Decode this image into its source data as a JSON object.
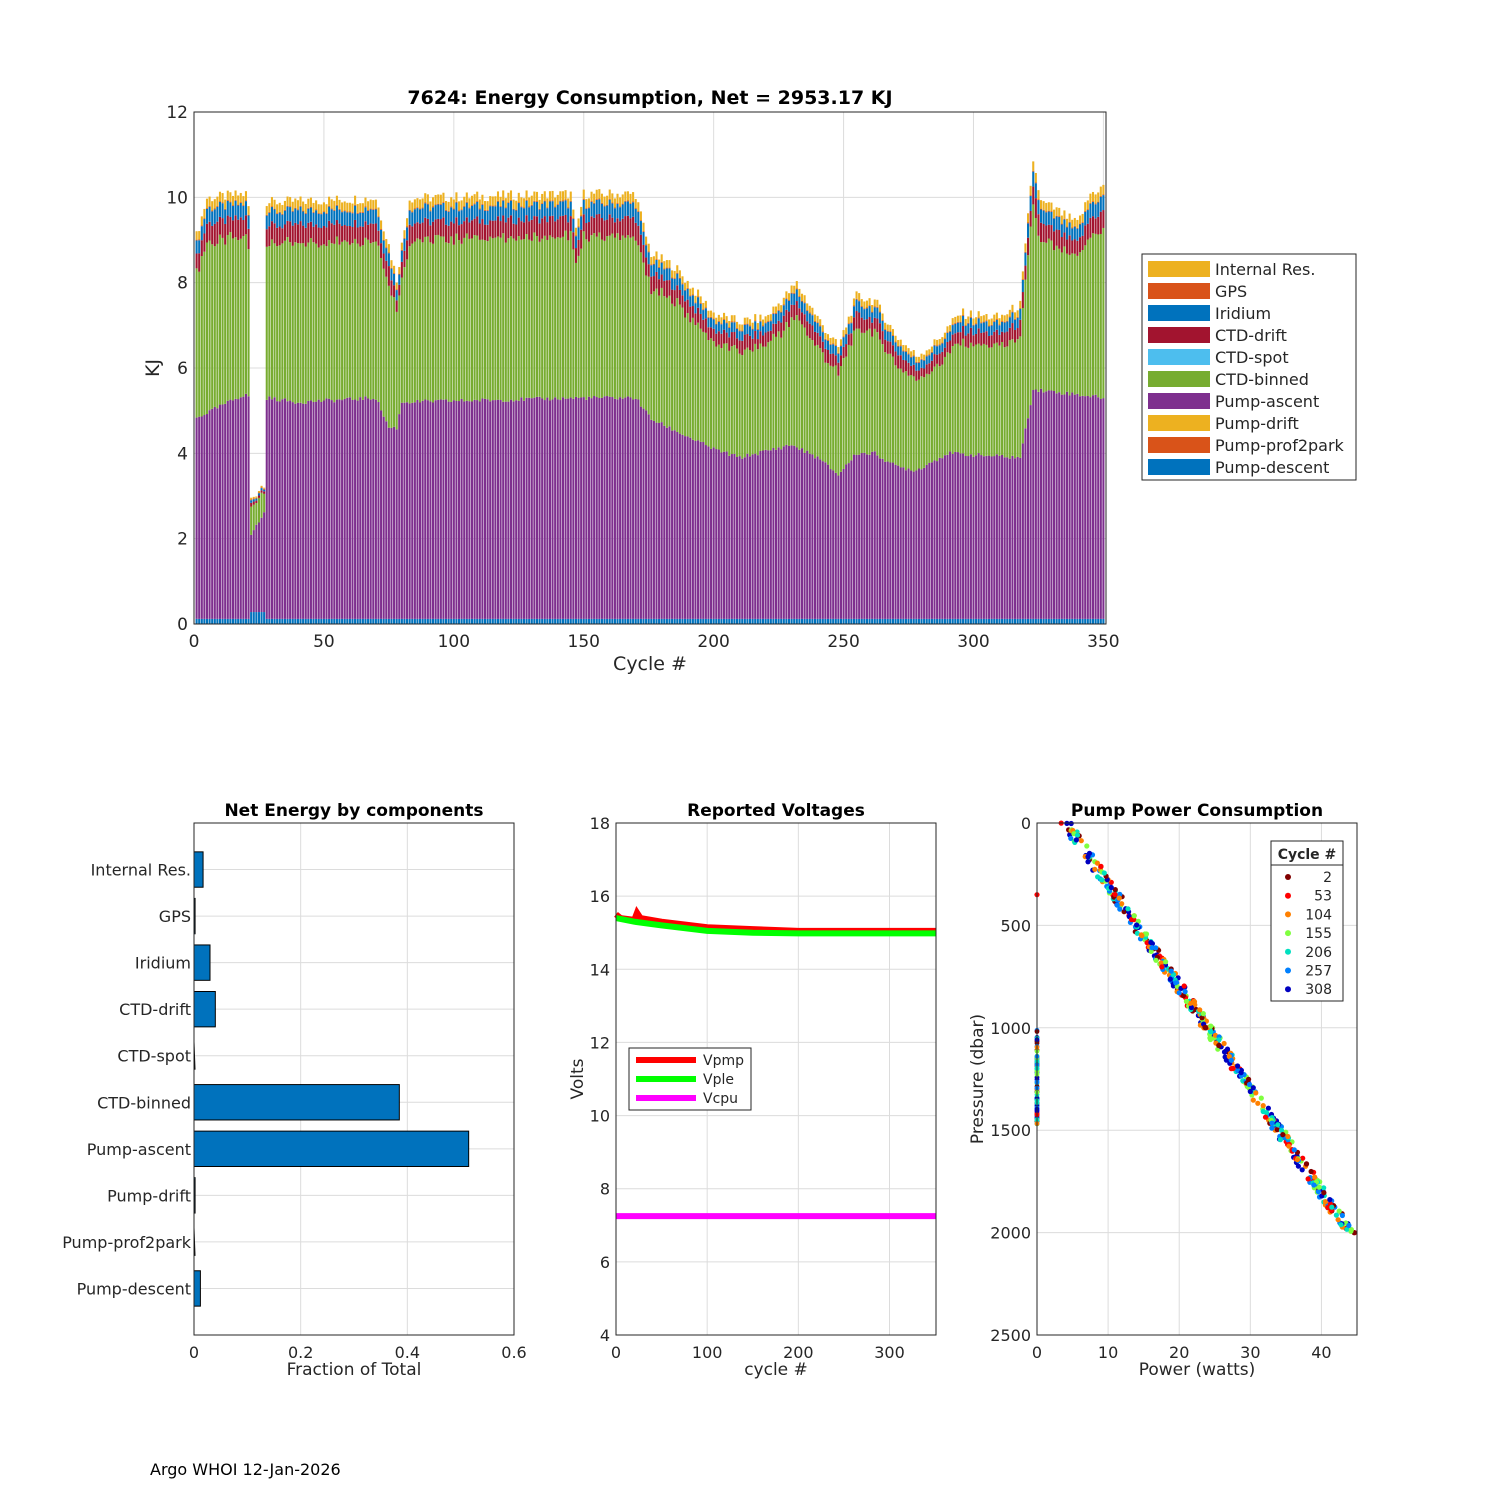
{
  "footer": "Argo WHOI 12-Jan-2026",
  "colors": {
    "Pump-descent": "#0072bd",
    "Pump-prof2park": "#d95319",
    "Pump-drift": "#edb120",
    "Pump-ascent": "#7e2f8e",
    "CTD-binned": "#77ac30",
    "CTD-spot": "#4dbeee",
    "CTD-drift": "#a2142f",
    "Iridium": "#0072bd",
    "GPS": "#d95319",
    "Internal Res.": "#edb120"
  },
  "chart_data": [
    {
      "type": "bar",
      "stacked": true,
      "title": "7624: Energy Consumption,  Net = 2953.17 KJ",
      "xlabel": "Cycle #",
      "ylabel": "KJ",
      "xlim": [
        0,
        351
      ],
      "ylim": [
        0,
        12
      ],
      "xticks": [
        0,
        50,
        100,
        150,
        200,
        250,
        300,
        350
      ],
      "yticks": [
        0,
        2,
        4,
        6,
        8,
        10,
        12
      ],
      "legend": [
        "Internal Res.",
        "GPS",
        "Iridium",
        "CTD-drift",
        "CTD-spot",
        "CTD-binned",
        "Pump-ascent",
        "Pump-drift",
        "Pump-prof2park",
        "Pump-descent"
      ],
      "stack_order": [
        "Pump-descent",
        "Pump-prof2park",
        "Pump-drift",
        "Pump-ascent",
        "CTD-binned",
        "CTD-spot",
        "CTD-drift",
        "Iridium",
        "GPS",
        "Internal Res."
      ],
      "total_profile": [
        [
          0,
          9.0
        ],
        [
          5,
          10.1
        ],
        [
          20,
          10.2
        ],
        [
          21,
          9.9
        ],
        [
          22,
          3.2
        ],
        [
          27,
          3.6
        ],
        [
          28,
          10.0
        ],
        [
          70,
          10.1
        ],
        [
          75,
          9.0
        ],
        [
          78,
          8.2
        ],
        [
          80,
          9.0
        ],
        [
          83,
          10.1
        ],
        [
          145,
          10.2
        ],
        [
          147,
          9.3
        ],
        [
          150,
          10.2
        ],
        [
          170,
          10.2
        ],
        [
          174,
          9.2
        ],
        [
          176,
          8.8
        ],
        [
          185,
          8.5
        ],
        [
          200,
          7.4
        ],
        [
          210,
          7.2
        ],
        [
          220,
          7.3
        ],
        [
          232,
          8.1
        ],
        [
          240,
          7.3
        ],
        [
          248,
          6.6
        ],
        [
          255,
          7.8
        ],
        [
          262,
          7.7
        ],
        [
          270,
          6.9
        ],
        [
          278,
          6.4
        ],
        [
          285,
          6.7
        ],
        [
          295,
          7.4
        ],
        [
          310,
          7.3
        ],
        [
          318,
          7.6
        ],
        [
          323,
          11.0
        ],
        [
          326,
          10.0
        ],
        [
          330,
          9.9
        ],
        [
          340,
          9.5
        ],
        [
          345,
          10.2
        ],
        [
          351,
          10.4
        ]
      ],
      "ascent_profile": [
        [
          0,
          4.8
        ],
        [
          20,
          5.4
        ],
        [
          21,
          5.3
        ],
        [
          22,
          2.1
        ],
        [
          27,
          2.6
        ],
        [
          28,
          5.3
        ],
        [
          40,
          5.2
        ],
        [
          70,
          5.3
        ],
        [
          75,
          4.6
        ],
        [
          78,
          4.6
        ],
        [
          80,
          5.2
        ],
        [
          150,
          5.3
        ],
        [
          170,
          5.3
        ],
        [
          176,
          4.8
        ],
        [
          200,
          4.1
        ],
        [
          210,
          3.9
        ],
        [
          230,
          4.2
        ],
        [
          240,
          3.9
        ],
        [
          248,
          3.5
        ],
        [
          255,
          4.0
        ],
        [
          262,
          4.0
        ],
        [
          270,
          3.7
        ],
        [
          278,
          3.6
        ],
        [
          290,
          4.0
        ],
        [
          318,
          3.9
        ],
        [
          323,
          5.5
        ],
        [
          351,
          5.3
        ]
      ]
    },
    {
      "type": "barh",
      "title": "Net Energy by components",
      "xlabel": "Fraction of Total",
      "xlim": [
        0,
        0.6
      ],
      "xticks": [
        0,
        0.2,
        0.4,
        0.6
      ],
      "categories": [
        "Internal Res.",
        "GPS",
        "Iridium",
        "CTD-drift",
        "CTD-spot",
        "CTD-binned",
        "Pump-ascent",
        "Pump-drift",
        "Pump-prof2park",
        "Pump-descent"
      ],
      "values": [
        0.017,
        0.002,
        0.03,
        0.04,
        0.0,
        0.385,
        0.515,
        0.002,
        0.0,
        0.012
      ]
    },
    {
      "type": "line",
      "title": "Reported Voltages",
      "xlabel": "cycle #",
      "ylabel": "Volts",
      "xlim": [
        0,
        351
      ],
      "ylim": [
        4,
        18
      ],
      "xticks": [
        0,
        100,
        200,
        300
      ],
      "yticks": [
        4,
        6,
        8,
        10,
        12,
        14,
        16,
        18
      ],
      "series": [
        {
          "name": "Vpmp",
          "color": "#ff0000",
          "points": [
            [
              0,
              15.5
            ],
            [
              5,
              15.4
            ],
            [
              20,
              15.35
            ],
            [
              23,
              15.55
            ],
            [
              27,
              15.4
            ],
            [
              50,
              15.3
            ],
            [
              100,
              15.15
            ],
            [
              150,
              15.1
            ],
            [
              200,
              15.05
            ],
            [
              250,
              15.05
            ],
            [
              300,
              15.05
            ],
            [
              351,
              15.05
            ]
          ]
        },
        {
          "name": "Vple",
          "color": "#00ff00",
          "points": [
            [
              0,
              15.4
            ],
            [
              20,
              15.3
            ],
            [
              50,
              15.2
            ],
            [
              100,
              15.05
            ],
            [
              150,
              15.0
            ],
            [
              200,
              14.98
            ],
            [
              250,
              14.98
            ],
            [
              300,
              14.98
            ],
            [
              351,
              14.98
            ]
          ]
        },
        {
          "name": "Vcpu",
          "color": "#ff00ff",
          "points": [
            [
              0,
              7.25
            ],
            [
              351,
              7.25
            ]
          ]
        }
      ]
    },
    {
      "type": "scatter",
      "title": "Pump Power Consumption",
      "xlabel": "Power (watts)",
      "ylabel": "Pressure (dbar)",
      "xlim": [
        0,
        45
      ],
      "ylim": [
        0,
        2500
      ],
      "y_reversed": true,
      "xticks": [
        0,
        10,
        20,
        30,
        40
      ],
      "yticks": [
        0,
        500,
        1000,
        1500,
        2000,
        2500
      ],
      "legend_title": "Cycle #",
      "legend": [
        {
          "label": "2",
          "color": "#800000"
        },
        {
          "label": "53",
          "color": "#ff0000"
        },
        {
          "label": "104",
          "color": "#ff8000"
        },
        {
          "label": "155",
          "color": "#80ff40"
        },
        {
          "label": "206",
          "color": "#00e0c0"
        },
        {
          "label": "257",
          "color": "#0080ff"
        },
        {
          "label": "308",
          "color": "#0000c0"
        }
      ],
      "trend": {
        "p0_watts": 4.0,
        "p2000_watts": 44.0
      },
      "cluster_near_zero": {
        "watts": 0.0,
        "pressure_range": [
          1000,
          1480
        ]
      },
      "outlier": {
        "watts": 0.0,
        "pressure": 350
      }
    }
  ]
}
